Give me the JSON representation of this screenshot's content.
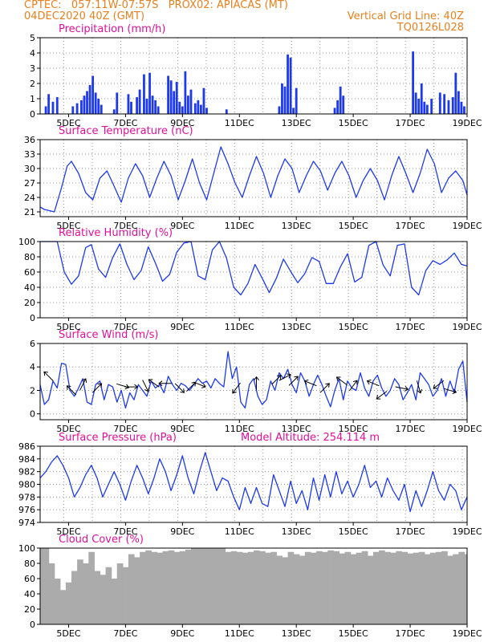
{
  "header": {
    "left_line1": "CPTEC:   057:11W-07:57S   PROX02: APIACAS (MT)",
    "left_line2": "04DEC2020 40Z (GMT)",
    "right_line1": "Vertical Grid Line: 40Z",
    "right_line2": "TQ0126L028"
  },
  "x_tick_labels": [
    "5DEC",
    "7DEC",
    "9DEC",
    "11DEC",
    "13DEC",
    "15DEC",
    "17DEC",
    "19DEC"
  ],
  "colors": {
    "header": "#e8801e",
    "title": "#e0109a",
    "series": "#1d39f0",
    "cloud": "#ababab",
    "grid": "#999999"
  },
  "chart_data": [
    {
      "type": "bar",
      "title": "Precipitation (mm/h)",
      "yticks": [
        "0",
        "1",
        "2",
        "3",
        "4",
        "5"
      ],
      "ylim": [
        0,
        5
      ],
      "x_range_days": [
        4.0,
        19.0
      ],
      "x": [
        4.2,
        4.3,
        4.45,
        4.6,
        5.15,
        5.3,
        5.45,
        5.55,
        5.65,
        5.75,
        5.85,
        5.95,
        6.05,
        6.15,
        6.6,
        6.7,
        7.1,
        7.2,
        7.4,
        7.5,
        7.65,
        7.75,
        7.85,
        7.95,
        8.05,
        8.15,
        8.5,
        8.6,
        8.7,
        8.8,
        8.9,
        9.0,
        9.1,
        9.2,
        9.3,
        9.45,
        9.55,
        9.65,
        9.75,
        9.85,
        10.55,
        12.4,
        12.5,
        12.6,
        12.7,
        12.8,
        12.9,
        13.0,
        14.35,
        14.45,
        14.55,
        14.65,
        17.1,
        17.2,
        17.3,
        17.4,
        17.5,
        17.6,
        17.75,
        18.05,
        18.2,
        18.35,
        18.5,
        18.6,
        18.7,
        18.8,
        18.9
      ],
      "values": [
        0.5,
        1.3,
        0.8,
        1.1,
        0.5,
        0.7,
        0.9,
        1.2,
        1.5,
        1.9,
        2.5,
        1.4,
        1.0,
        0.6,
        0.3,
        1.4,
        1.3,
        0.8,
        1.1,
        1.6,
        2.6,
        1.0,
        2.7,
        1.2,
        0.9,
        0.5,
        2.5,
        2.2,
        1.5,
        2.1,
        0.8,
        0.5,
        2.8,
        1.2,
        1.6,
        0.7,
        0.9,
        0.6,
        1.7,
        0.4,
        0.3,
        0.5,
        2.0,
        1.8,
        3.9,
        3.7,
        0.4,
        1.7,
        0.4,
        0.9,
        1.8,
        1.2,
        4.1,
        1.4,
        1.0,
        2.0,
        0.8,
        0.6,
        1.0,
        1.4,
        1.3,
        0.9,
        1.1,
        2.7,
        1.5,
        0.8,
        0.5
      ]
    },
    {
      "type": "line",
      "title": "Surface Temperature (nC)",
      "yticks": [
        "21",
        "24",
        "27",
        "30",
        "33",
        "36"
      ],
      "ylim": [
        20,
        36
      ],
      "x_range_days": [
        4.0,
        19.0
      ],
      "x": [
        4.0,
        4.15,
        4.5,
        4.75,
        4.95,
        5.1,
        5.35,
        5.6,
        5.85,
        6.1,
        6.35,
        6.55,
        6.85,
        7.1,
        7.35,
        7.6,
        7.85,
        8.1,
        8.35,
        8.6,
        8.85,
        9.1,
        9.35,
        9.6,
        9.85,
        10.1,
        10.35,
        10.6,
        10.85,
        11.1,
        11.35,
        11.6,
        11.85,
        12.1,
        12.35,
        12.6,
        12.85,
        13.1,
        13.35,
        13.6,
        13.85,
        14.1,
        14.35,
        14.6,
        14.85,
        15.1,
        15.35,
        15.6,
        15.85,
        16.1,
        16.35,
        16.6,
        16.85,
        17.1,
        17.35,
        17.6,
        17.85,
        18.1,
        18.35,
        18.6,
        18.85,
        19.0
      ],
      "values": [
        22.0,
        21.5,
        21.0,
        26.0,
        30.5,
        31.5,
        29.0,
        25.0,
        23.5,
        28.0,
        29.5,
        27.0,
        23.0,
        28.0,
        31.0,
        28.5,
        24.0,
        28.0,
        31.5,
        28.5,
        23.5,
        27.5,
        32.0,
        27.0,
        23.5,
        29.0,
        34.5,
        31.0,
        27.0,
        24.0,
        28.5,
        32.5,
        29.0,
        24.0,
        28.5,
        32.0,
        30.0,
        25.0,
        28.5,
        31.5,
        29.5,
        25.5,
        29.0,
        31.5,
        28.5,
        24.0,
        27.5,
        30.0,
        27.5,
        23.5,
        28.5,
        32.5,
        29.0,
        25.0,
        29.0,
        34.0,
        31.0,
        25.0,
        28.0,
        29.5,
        27.5,
        24.5
      ]
    },
    {
      "type": "line",
      "title": "Relative Humidity (%)",
      "yticks": [
        "0",
        "20",
        "40",
        "60",
        "80",
        "100"
      ],
      "ylim": [
        0,
        100
      ],
      "x_range_days": [
        4.0,
        19.0
      ],
      "x": [
        4.0,
        4.2,
        4.4,
        4.6,
        4.85,
        5.1,
        5.35,
        5.6,
        5.8,
        6.05,
        6.3,
        6.55,
        6.8,
        7.05,
        7.3,
        7.55,
        7.8,
        8.05,
        8.3,
        8.55,
        8.8,
        9.05,
        9.3,
        9.55,
        9.8,
        10.05,
        10.3,
        10.55,
        10.8,
        11.05,
        11.3,
        11.55,
        11.8,
        12.05,
        12.3,
        12.55,
        12.8,
        13.05,
        13.3,
        13.55,
        13.8,
        14.05,
        14.3,
        14.55,
        14.8,
        15.05,
        15.3,
        15.55,
        15.8,
        16.05,
        16.3,
        16.55,
        16.8,
        17.05,
        17.3,
        17.55,
        17.8,
        18.05,
        18.3,
        18.55,
        18.8,
        19.0
      ],
      "values": [
        100.0,
        100.0,
        100.0,
        100.0,
        60.0,
        44.0,
        55.0,
        92.0,
        96.0,
        64.0,
        53.0,
        79.0,
        97.0,
        70.0,
        50.0,
        62.0,
        93.0,
        72.0,
        48.0,
        57.0,
        86.0,
        98.0,
        100.0,
        55.0,
        50.0,
        89.0,
        100.0,
        78.0,
        40.0,
        30.0,
        45.0,
        70.0,
        52.0,
        33.0,
        52.0,
        77.0,
        61.0,
        46.0,
        58.0,
        79.0,
        74.0,
        45.0,
        45.0,
        67.0,
        84.0,
        47.0,
        53.0,
        95.0,
        100.0,
        69.0,
        55.0,
        95.0,
        97.0,
        40.0,
        30.0,
        62.0,
        75.0,
        70.0,
        76.0,
        85.0,
        70.0,
        68.0
      ]
    },
    {
      "type": "line",
      "title": "Surface Wind (m/s)",
      "yticks": [
        "0",
        "2",
        "4",
        "6"
      ],
      "ylim": [
        -0.5,
        6
      ],
      "x_range_days": [
        4.0,
        19.0
      ],
      "x": [
        4.0,
        4.15,
        4.3,
        4.45,
        4.6,
        4.75,
        4.9,
        5.05,
        5.2,
        5.35,
        5.5,
        5.65,
        5.8,
        5.95,
        6.1,
        6.25,
        6.4,
        6.55,
        6.7,
        6.85,
        7.0,
        7.15,
        7.3,
        7.45,
        7.6,
        7.75,
        7.9,
        8.05,
        8.2,
        8.35,
        8.5,
        8.65,
        8.8,
        8.95,
        9.1,
        9.25,
        9.4,
        9.55,
        9.7,
        9.85,
        10.0,
        10.15,
        10.3,
        10.45,
        10.6,
        10.75,
        10.9,
        11.05,
        11.2,
        11.35,
        11.5,
        11.65,
        11.8,
        11.95,
        12.1,
        12.25,
        12.4,
        12.55,
        12.7,
        12.85,
        13.0,
        13.15,
        13.3,
        13.45,
        13.6,
        13.75,
        13.9,
        14.05,
        14.2,
        14.35,
        14.5,
        14.65,
        14.8,
        14.95,
        15.1,
        15.25,
        15.4,
        15.55,
        15.7,
        15.85,
        16.0,
        16.15,
        16.3,
        16.45,
        16.6,
        16.75,
        16.9,
        17.05,
        17.2,
        17.35,
        17.5,
        17.65,
        17.8,
        17.95,
        18.1,
        18.25,
        18.4,
        18.55,
        18.7,
        18.85,
        19.0
      ],
      "values": [
        2.5,
        0.8,
        1.2,
        2.8,
        2.2,
        4.3,
        4.2,
        2.0,
        1.5,
        2.2,
        3.0,
        1.0,
        0.8,
        2.5,
        2.8,
        1.2,
        2.5,
        2.3,
        1.0,
        2.0,
        0.5,
        1.8,
        1.2,
        2.5,
        2.0,
        1.5,
        2.8,
        2.2,
        2.5,
        1.8,
        3.2,
        2.5,
        2.0,
        2.6,
        2.4,
        2.0,
        2.5,
        3.0,
        2.6,
        2.8,
        2.2,
        3.0,
        2.6,
        2.3,
        5.3,
        3.0,
        4.0,
        1.0,
        0.5,
        2.5,
        3.0,
        1.5,
        0.8,
        1.2,
        2.8,
        2.0,
        3.5,
        3.0,
        3.8,
        2.5,
        1.8,
        3.5,
        2.8,
        1.5,
        2.5,
        3.3,
        2.5,
        1.5,
        0.6,
        2.0,
        3.0,
        1.2,
        2.8,
        2.2,
        2.0,
        3.5,
        2.2,
        1.5,
        2.8,
        3.3,
        2.2,
        1.5,
        2.0,
        3.0,
        2.5,
        1.2,
        1.8,
        2.5,
        1.2,
        3.5,
        3.0,
        2.5,
        1.5,
        2.0,
        3.0,
        1.5,
        2.8,
        1.8,
        3.8,
        4.5,
        1.0
      ]
    },
    {
      "type": "line",
      "title": "Surface Pressure (hPa)",
      "annotation": "Model Altitude: 254.114 m",
      "yticks": [
        "974",
        "976",
        "978",
        "980",
        "982",
        "984",
        "986"
      ],
      "ylim": [
        974,
        986
      ],
      "x_range_days": [
        4.0,
        19.0
      ],
      "x": [
        4.0,
        4.2,
        4.4,
        4.6,
        4.8,
        5.0,
        5.2,
        5.4,
        5.6,
        5.8,
        6.0,
        6.2,
        6.4,
        6.6,
        6.8,
        7.0,
        7.2,
        7.4,
        7.6,
        7.8,
        8.0,
        8.2,
        8.4,
        8.6,
        8.8,
        9.0,
        9.2,
        9.4,
        9.6,
        9.8,
        10.0,
        10.2,
        10.4,
        10.6,
        10.8,
        11.0,
        11.2,
        11.4,
        11.6,
        11.8,
        12.0,
        12.2,
        12.4,
        12.6,
        12.8,
        13.0,
        13.2,
        13.4,
        13.6,
        13.8,
        14.0,
        14.2,
        14.4,
        14.6,
        14.8,
        15.0,
        15.2,
        15.4,
        15.6,
        15.8,
        16.0,
        16.2,
        16.4,
        16.6,
        16.8,
        17.0,
        17.2,
        17.4,
        17.6,
        17.8,
        18.0,
        18.2,
        18.4,
        18.6,
        18.8,
        19.0
      ],
      "values": [
        981.0,
        982.0,
        983.5,
        984.5,
        983.0,
        981.0,
        978.0,
        979.5,
        981.5,
        983.0,
        981.0,
        978.0,
        980.0,
        982.0,
        980.0,
        977.5,
        980.5,
        983.0,
        981.0,
        978.5,
        981.0,
        984.0,
        982.0,
        979.0,
        981.5,
        984.5,
        981.0,
        978.5,
        982.0,
        985.0,
        982.0,
        979.0,
        981.0,
        980.5,
        978.0,
        976.0,
        979.5,
        977.0,
        979.5,
        977.0,
        976.5,
        981.5,
        979.0,
        976.5,
        980.5,
        977.0,
        979.0,
        976.0,
        981.0,
        977.5,
        981.5,
        978.0,
        982.0,
        978.5,
        980.5,
        978.0,
        980.0,
        983.0,
        979.5,
        980.5,
        978.0,
        981.0,
        979.0,
        977.5,
        980.0,
        975.7,
        979.0,
        976.5,
        979.0,
        982.0,
        979.0,
        977.5,
        980.0,
        979.0,
        976.0,
        978.0
      ]
    },
    {
      "type": "bar",
      "title": "Cloud Cover (%)",
      "yticks": [
        "0",
        "20",
        "40",
        "60",
        "80",
        "100"
      ],
      "ylim": [
        0,
        100
      ],
      "x_range_days": [
        4.0,
        19.0
      ],
      "x": [
        4.0,
        4.2,
        4.4,
        4.6,
        4.8,
        4.85,
        4.9,
        5.0,
        5.2,
        5.4,
        5.6,
        5.8,
        6.0,
        6.2,
        6.4,
        6.6,
        6.8,
        7.0,
        7.2,
        7.4,
        7.6,
        7.8,
        8.0,
        8.2,
        8.4,
        8.6,
        8.8,
        9.0,
        9.2,
        9.4,
        9.6,
        9.8,
        10.0,
        10.2,
        10.4,
        10.6,
        10.8,
        11.0,
        11.2,
        11.4,
        11.6,
        11.8,
        12.0,
        12.2,
        12.4,
        12.6,
        12.8,
        13.0,
        13.2,
        13.4,
        13.6,
        13.8,
        14.0,
        14.2,
        14.4,
        14.6,
        14.8,
        15.0,
        15.2,
        15.4,
        15.6,
        15.8,
        16.0,
        16.2,
        16.4,
        16.6,
        16.8,
        17.0,
        17.2,
        17.4,
        17.6,
        17.8,
        18.0,
        18.2,
        18.4,
        18.6,
        18.8,
        19.0
      ],
      "values": [
        100.0,
        100.0,
        80.0,
        60.0,
        45.0,
        12.0,
        35.0,
        55.0,
        70.0,
        85.0,
        80.0,
        95.0,
        70.0,
        65.0,
        75.0,
        60.0,
        80.0,
        75.0,
        92.0,
        88.0,
        95.0,
        97.0,
        95.0,
        94.0,
        96.0,
        97.0,
        95.0,
        96.0,
        98.0,
        100.0,
        100.0,
        100.0,
        100.0,
        100.0,
        100.0,
        95.0,
        96.0,
        95.0,
        94.0,
        95.0,
        97.0,
        96.0,
        94.0,
        95.0,
        90.0,
        88.0,
        95.0,
        92.0,
        90.0,
        95.0,
        94.0,
        96.0,
        95.0,
        97.0,
        96.0,
        93.0,
        95.0,
        92.0,
        94.0,
        96.0,
        90.0,
        95.0,
        97.0,
        95.0,
        94.0,
        96.0,
        95.0,
        93.0,
        94.0,
        95.0,
        92.0,
        94.0,
        95.0,
        96.0,
        90.0,
        92.0,
        95.0,
        92.0
      ]
    }
  ]
}
